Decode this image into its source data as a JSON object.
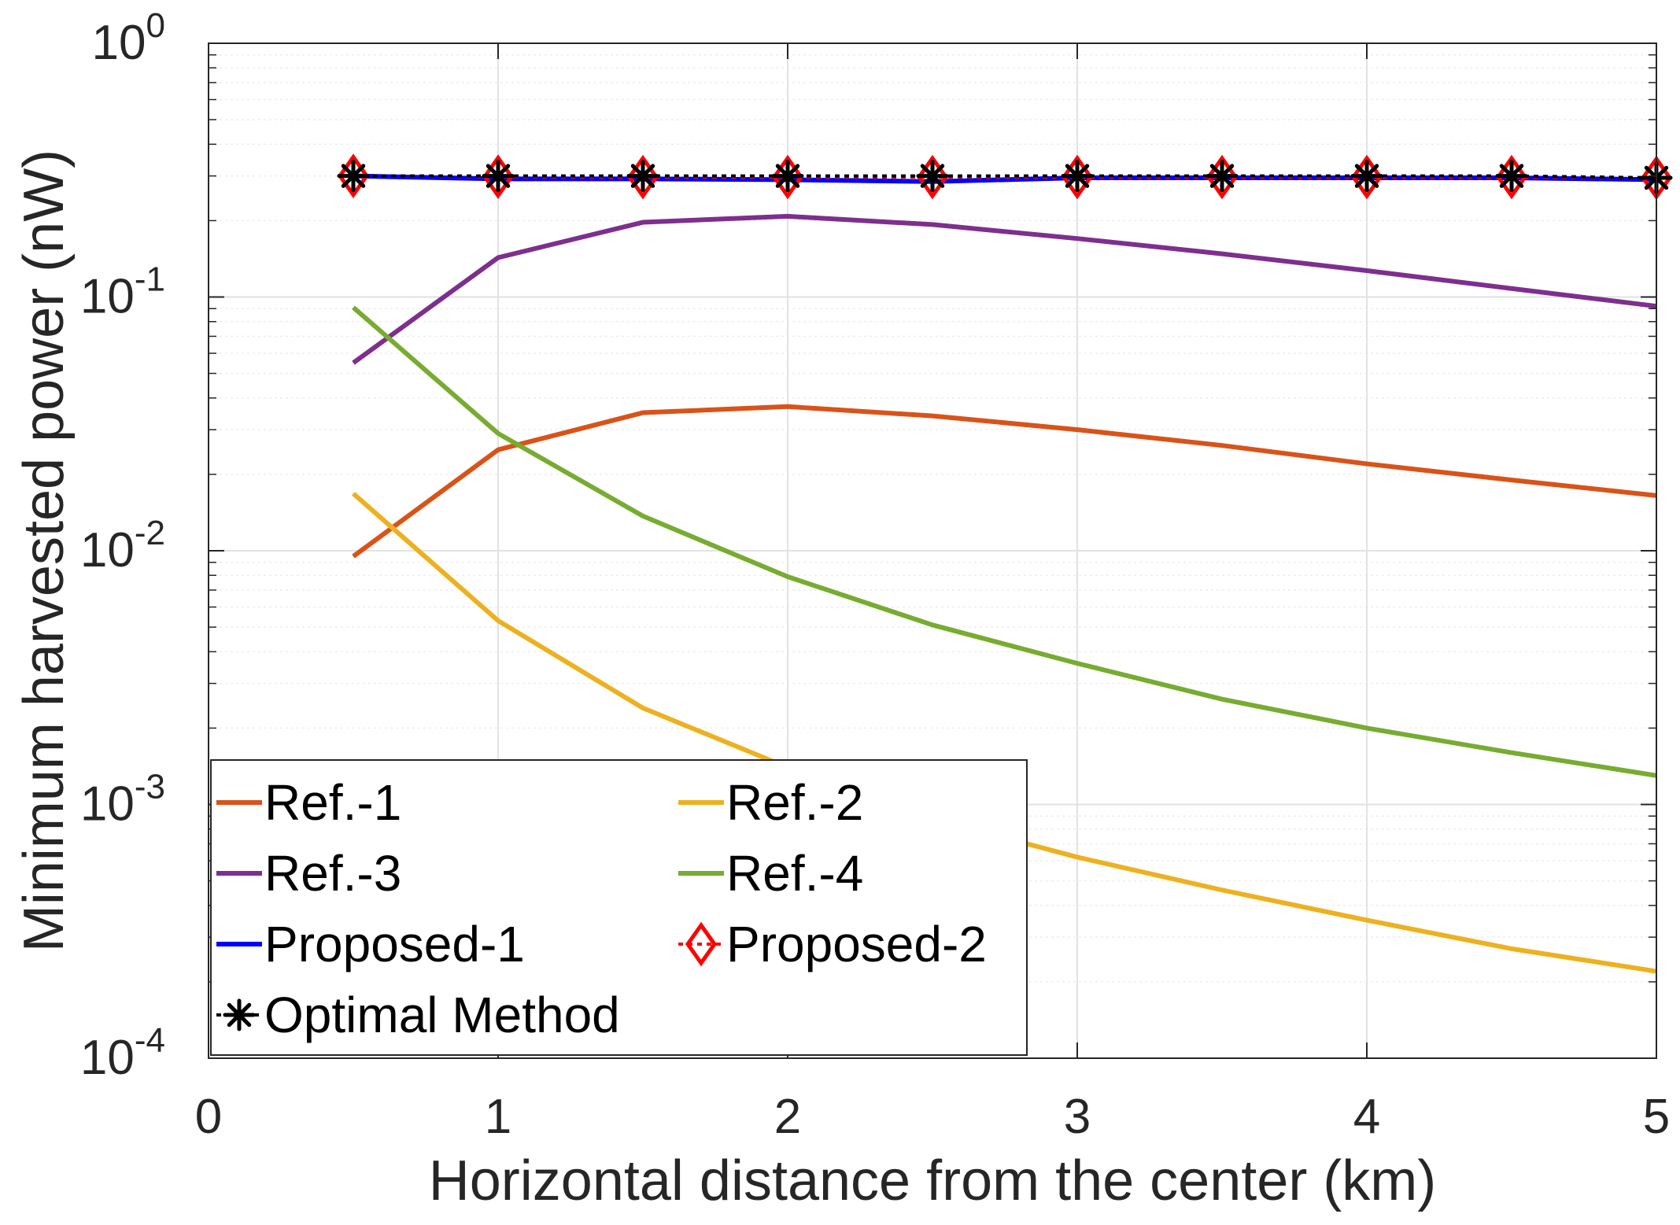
{
  "chart_data": {
    "type": "line",
    "xlabel": "Horizontal distance from the center (km)",
    "ylabel": "Minimum harvested power (nW)",
    "xlim": [
      0,
      5
    ],
    "ylim": [
      0.0001,
      1
    ],
    "yscale": "log",
    "grid": true,
    "minor_grid": true,
    "legend_position": "bottom-left",
    "legend_columns": 2,
    "xticks": [
      0,
      1,
      2,
      3,
      4,
      5
    ],
    "xtick_labels": [
      "0",
      "1",
      "2",
      "3",
      "4",
      "5"
    ],
    "yticks": [
      {
        "value": 1,
        "base": "10",
        "exp": "0"
      },
      {
        "value": 0.1,
        "base": "10",
        "exp": "-1"
      },
      {
        "value": 0.01,
        "base": "10",
        "exp": "-2"
      },
      {
        "value": 0.001,
        "base": "10",
        "exp": "-3"
      },
      {
        "value": 0.0001,
        "base": "10",
        "exp": "-4"
      }
    ],
    "x": [
      0.5,
      1,
      1.5,
      2,
      2.5,
      3,
      3.5,
      4,
      4.5,
      5
    ],
    "series": [
      {
        "name": "Ref.-1",
        "color": "#D95319",
        "marker": "none",
        "values": [
          0.0095,
          0.025,
          0.035,
          0.037,
          0.034,
          0.03,
          0.026,
          0.022,
          0.019,
          0.0165
        ]
      },
      {
        "name": "Ref.-2",
        "color": "#EDB120",
        "marker": "none",
        "values": [
          0.0168,
          0.0053,
          0.0024,
          0.0014,
          0.00088,
          0.00062,
          0.00046,
          0.00035,
          0.00027,
          0.00022
        ]
      },
      {
        "name": "Ref.-3",
        "color": "#7E2F8E",
        "marker": "none",
        "values": [
          0.055,
          0.143,
          0.197,
          0.208,
          0.193,
          0.17,
          0.148,
          0.127,
          0.108,
          0.092
        ]
      },
      {
        "name": "Ref.-4",
        "color": "#77AC30",
        "marker": "none",
        "values": [
          0.091,
          0.029,
          0.0137,
          0.0079,
          0.0051,
          0.0036,
          0.0026,
          0.002,
          0.0016,
          0.0013
        ]
      },
      {
        "name": "Proposed-1",
        "color": "#0000FF",
        "marker": "none",
        "values": [
          0.3,
          0.292,
          0.292,
          0.29,
          0.285,
          0.295,
          0.295,
          0.295,
          0.295,
          0.29
        ]
      },
      {
        "name": "Proposed-2",
        "color": "#FF0000",
        "marker": "diamond",
        "dash": "dotted",
        "values": [
          0.3,
          0.298,
          0.297,
          0.297,
          0.297,
          0.297,
          0.297,
          0.297,
          0.297,
          0.295
        ]
      },
      {
        "name": "Optimal Method",
        "color": "#000000",
        "marker": "asterisk",
        "dash": "dotted",
        "values": [
          0.3,
          0.3,
          0.3,
          0.3,
          0.3,
          0.3,
          0.3,
          0.3,
          0.3,
          0.295
        ]
      }
    ]
  }
}
